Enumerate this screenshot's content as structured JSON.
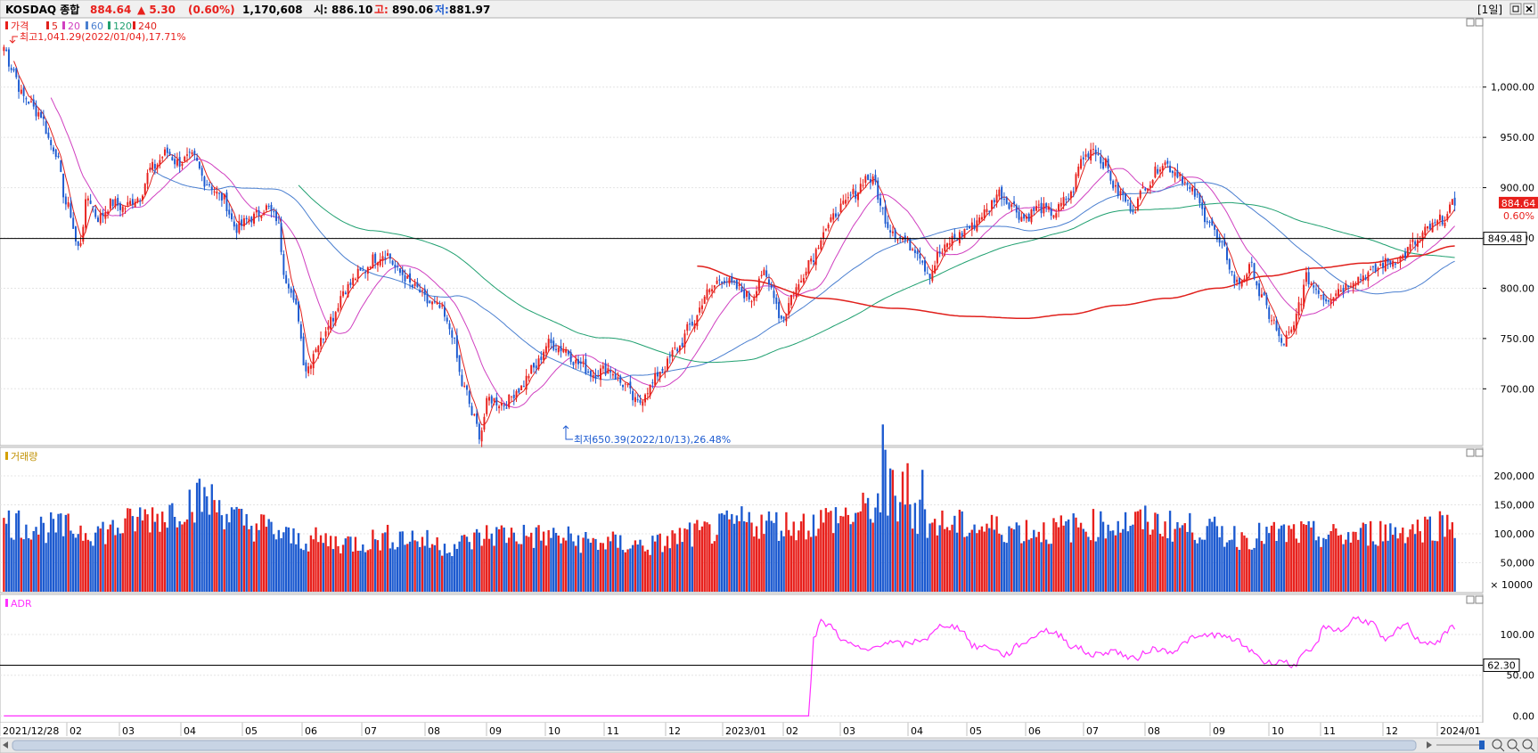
{
  "header": {
    "symbol": "KOSDAQ 종합",
    "price": "884.64",
    "change": "▲ 5.30",
    "change_pct": "(0.60%)",
    "volume": "1,170,608",
    "open_label": "시:",
    "open": "886.10",
    "high_label": "고:",
    "high": "890.06",
    "low_label": "저:",
    "low": "881.97",
    "period": "[1일]"
  },
  "legend": {
    "price_label": "가격",
    "ma": [
      {
        "label": "5",
        "color": "#e0201c"
      },
      {
        "label": "20",
        "color": "#d040c0"
      },
      {
        "label": "60",
        "color": "#4a7fd0"
      },
      {
        "label": "120",
        "color": "#20a070"
      },
      {
        "label": "240",
        "color": "#e0201c"
      }
    ]
  },
  "colors": {
    "up": "#e8201c",
    "down": "#1c5ad0",
    "adr": "#ff30ff",
    "ma5": "#e0201c",
    "ma20": "#d040c0",
    "ma60": "#4a7fd0",
    "ma120": "#20a070",
    "ma240": "#e0201c",
    "grid": "#e4e4e4",
    "ref_line": "#000000"
  },
  "annotations": {
    "high": "최고1,041.29(2022/01/04),17.71%",
    "low": "최저650.39(2022/10/13),26.48%"
  },
  "price_panel": {
    "y_ticks": [
      {
        "value": 1000,
        "label": "1,000.00"
      },
      {
        "value": 950,
        "label": "950.00"
      },
      {
        "value": 900,
        "label": "900.00"
      },
      {
        "value": 850,
        "label": "850.00"
      },
      {
        "value": 800,
        "label": "800.00"
      },
      {
        "value": 750,
        "label": "750.00"
      },
      {
        "value": 700,
        "label": "700.00"
      }
    ],
    "y_range": [
      648,
      1060
    ],
    "ref_value": 849.48,
    "ref_label": "849.48",
    "last_label": "884.64",
    "last_pct": "0.60%"
  },
  "volume_panel": {
    "title": "거래량",
    "y_ticks": [
      {
        "value": 200000,
        "label": "200,000"
      },
      {
        "value": 150000,
        "label": "150,000"
      },
      {
        "value": 100000,
        "label": "100,000"
      },
      {
        "value": 50000,
        "label": "50,000"
      }
    ],
    "unit_label": "× 10000",
    "y_range": [
      0,
      240000
    ]
  },
  "adr_panel": {
    "title": "ADR",
    "y_ticks": [
      {
        "value": 100,
        "label": "100.00"
      },
      {
        "value": 50,
        "label": "50.00"
      },
      {
        "value": 0,
        "label": "0.00"
      }
    ],
    "y_range": [
      -5,
      135
    ],
    "ref_value": 62.3,
    "ref_label": "62.30"
  },
  "x_axis": {
    "labels": [
      "2021/12/28",
      "02",
      "03",
      "04",
      "05",
      "06",
      "07",
      "08",
      "09",
      "10",
      "11",
      "12",
      "2023/01",
      "02",
      "03",
      "04",
      "05",
      "06",
      "07",
      "08",
      "09",
      "10",
      "11",
      "12",
      "2024/01"
    ]
  },
  "chart_data": {
    "type": "candlestick",
    "x_start": "2021/12/28",
    "x_end": "2024/01",
    "close_anchors": [
      [
        0,
        1040
      ],
      [
        3,
        1020
      ],
      [
        8,
        990
      ],
      [
        14,
        975
      ],
      [
        20,
        940
      ],
      [
        26,
        880
      ],
      [
        30,
        840
      ],
      [
        34,
        890
      ],
      [
        38,
        870
      ],
      [
        44,
        885
      ],
      [
        48,
        880
      ],
      [
        54,
        890
      ],
      [
        60,
        920
      ],
      [
        66,
        935
      ],
      [
        70,
        925
      ],
      [
        76,
        930
      ],
      [
        82,
        905
      ],
      [
        88,
        890
      ],
      [
        94,
        860
      ],
      [
        100,
        870
      ],
      [
        106,
        880
      ],
      [
        110,
        870
      ],
      [
        114,
        810
      ],
      [
        118,
        780
      ],
      [
        122,
        720
      ],
      [
        127,
        745
      ],
      [
        132,
        770
      ],
      [
        138,
        800
      ],
      [
        144,
        815
      ],
      [
        150,
        830
      ],
      [
        154,
        835
      ],
      [
        160,
        815
      ],
      [
        166,
        800
      ],
      [
        172,
        785
      ],
      [
        176,
        780
      ],
      [
        180,
        760
      ],
      [
        186,
        700
      ],
      [
        190,
        670
      ],
      [
        192,
        655
      ],
      [
        196,
        690
      ],
      [
        202,
        685
      ],
      [
        208,
        700
      ],
      [
        214,
        720
      ],
      [
        220,
        745
      ],
      [
        226,
        740
      ],
      [
        232,
        725
      ],
      [
        238,
        715
      ],
      [
        244,
        720
      ],
      [
        250,
        705
      ],
      [
        256,
        685
      ],
      [
        260,
        700
      ],
      [
        266,
        720
      ],
      [
        272,
        740
      ],
      [
        278,
        765
      ],
      [
        284,
        795
      ],
      [
        290,
        810
      ],
      [
        296,
        800
      ],
      [
        302,
        790
      ],
      [
        306,
        815
      ],
      [
        310,
        800
      ],
      [
        314,
        770
      ],
      [
        320,
        800
      ],
      [
        326,
        830
      ],
      [
        332,
        860
      ],
      [
        338,
        880
      ],
      [
        344,
        895
      ],
      [
        348,
        910
      ],
      [
        352,
        905
      ],
      [
        354,
        880
      ],
      [
        358,
        860
      ],
      [
        362,
        850
      ],
      [
        368,
        840
      ],
      [
        374,
        815
      ],
      [
        378,
        835
      ],
      [
        384,
        850
      ],
      [
        390,
        860
      ],
      [
        396,
        875
      ],
      [
        402,
        895
      ],
      [
        406,
        885
      ],
      [
        412,
        870
      ],
      [
        418,
        880
      ],
      [
        424,
        875
      ],
      [
        430,
        890
      ],
      [
        436,
        930
      ],
      [
        440,
        940
      ],
      [
        444,
        925
      ],
      [
        450,
        895
      ],
      [
        456,
        880
      ],
      [
        462,
        905
      ],
      [
        468,
        925
      ],
      [
        474,
        915
      ],
      [
        480,
        895
      ],
      [
        486,
        870
      ],
      [
        492,
        840
      ],
      [
        498,
        805
      ],
      [
        504,
        820
      ],
      [
        508,
        790
      ],
      [
        512,
        770
      ],
      [
        516,
        745
      ],
      [
        520,
        755
      ],
      [
        524,
        790
      ],
      [
        526,
        810
      ],
      [
        530,
        800
      ],
      [
        534,
        790
      ],
      [
        540,
        800
      ],
      [
        546,
        810
      ],
      [
        552,
        815
      ],
      [
        558,
        825
      ],
      [
        564,
        830
      ],
      [
        570,
        845
      ],
      [
        576,
        860
      ],
      [
        582,
        870
      ],
      [
        586,
        885
      ]
    ],
    "volume_anchors": [
      [
        0,
        120000
      ],
      [
        20,
        110000
      ],
      [
        40,
        105000
      ],
      [
        60,
        130000
      ],
      [
        80,
        160000
      ],
      [
        100,
        115000
      ],
      [
        120,
        90000
      ],
      [
        140,
        85000
      ],
      [
        160,
        95000
      ],
      [
        180,
        80000
      ],
      [
        200,
        100000
      ],
      [
        220,
        95000
      ],
      [
        240,
        85000
      ],
      [
        260,
        80000
      ],
      [
        280,
        100000
      ],
      [
        300,
        120000
      ],
      [
        320,
        115000
      ],
      [
        340,
        130000
      ],
      [
        360,
        160000
      ],
      [
        370,
        125000
      ],
      [
        380,
        115000
      ],
      [
        400,
        110000
      ],
      [
        420,
        105000
      ],
      [
        440,
        115000
      ],
      [
        460,
        120000
      ],
      [
        480,
        110000
      ],
      [
        500,
        95000
      ],
      [
        520,
        100000
      ],
      [
        540,
        95000
      ],
      [
        560,
        105000
      ],
      [
        586,
        118000
      ]
    ],
    "adr_anchors": [
      [
        0,
        0
      ],
      [
        325,
        0
      ],
      [
        327,
        95
      ],
      [
        330,
        115
      ],
      [
        334,
        110
      ],
      [
        340,
        90
      ],
      [
        348,
        80
      ],
      [
        356,
        90
      ],
      [
        364,
        88
      ],
      [
        372,
        95
      ],
      [
        380,
        112
      ],
      [
        386,
        108
      ],
      [
        392,
        85
      ],
      [
        398,
        85
      ],
      [
        404,
        75
      ],
      [
        412,
        90
      ],
      [
        420,
        105
      ],
      [
        426,
        100
      ],
      [
        432,
        85
      ],
      [
        440,
        75
      ],
      [
        448,
        80
      ],
      [
        456,
        70
      ],
      [
        464,
        82
      ],
      [
        472,
        80
      ],
      [
        480,
        95
      ],
      [
        488,
        100
      ],
      [
        496,
        95
      ],
      [
        504,
        80
      ],
      [
        510,
        65
      ],
      [
        516,
        68
      ],
      [
        520,
        62
      ],
      [
        528,
        80
      ],
      [
        534,
        110
      ],
      [
        540,
        105
      ],
      [
        546,
        120
      ],
      [
        552,
        115
      ],
      [
        558,
        92
      ],
      [
        566,
        112
      ],
      [
        572,
        92
      ],
      [
        578,
        90
      ],
      [
        586,
        110
      ]
    ],
    "ma240_anchors": [
      [
        280,
        822
      ],
      [
        300,
        808
      ],
      [
        330,
        790
      ],
      [
        360,
        780
      ],
      [
        390,
        772
      ],
      [
        412,
        770
      ],
      [
        430,
        774
      ],
      [
        450,
        783
      ],
      [
        470,
        790
      ],
      [
        490,
        800
      ],
      [
        510,
        812
      ],
      [
        530,
        820
      ],
      [
        550,
        825
      ],
      [
        570,
        832
      ],
      [
        586,
        842
      ]
    ]
  }
}
